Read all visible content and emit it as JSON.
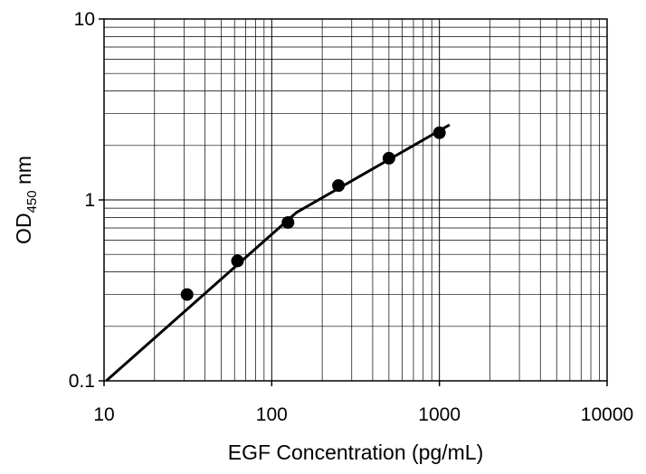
{
  "chart_data": {
    "type": "scatter",
    "x_scale": "log",
    "y_scale": "log",
    "xlim": [
      10,
      10000
    ],
    "ylim": [
      0.1,
      10
    ],
    "grid": true,
    "xlabel": "EGF Concentration (pg/mL)",
    "ylabel": {
      "main": "OD",
      "subscript": "450",
      "unit": " nm"
    },
    "x_ticks": [
      "10",
      "100",
      "1000",
      "10000"
    ],
    "y_ticks": [
      "0.1",
      "1",
      "10"
    ],
    "points": [
      {
        "x": 31.25,
        "y": 0.3
      },
      {
        "x": 62.5,
        "y": 0.46
      },
      {
        "x": 125,
        "y": 0.75
      },
      {
        "x": 250,
        "y": 1.2
      },
      {
        "x": 500,
        "y": 1.7
      },
      {
        "x": 1000,
        "y": 2.35
      }
    ],
    "fit_line": [
      {
        "x": 10.3,
        "y": 0.1
      },
      {
        "x": 140,
        "y": 0.85
      },
      {
        "x": 1150,
        "y": 2.6
      }
    ],
    "colors": {
      "marker": "#000000",
      "line": "#000000",
      "grid": "#000000",
      "plot_background": "#ffffff"
    }
  }
}
